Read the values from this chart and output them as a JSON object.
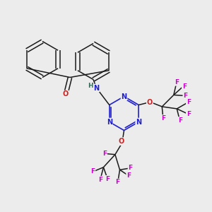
{
  "background_color": "#ececec",
  "bond_color": "#1a1a1a",
  "N_color": "#2020cc",
  "O_color": "#cc2020",
  "F_color": "#cc00cc",
  "H_color": "#336655",
  "figsize": [
    3.0,
    3.0
  ],
  "dpi": 100,
  "xlim": [
    0,
    10
  ],
  "ylim": [
    0,
    10
  ]
}
